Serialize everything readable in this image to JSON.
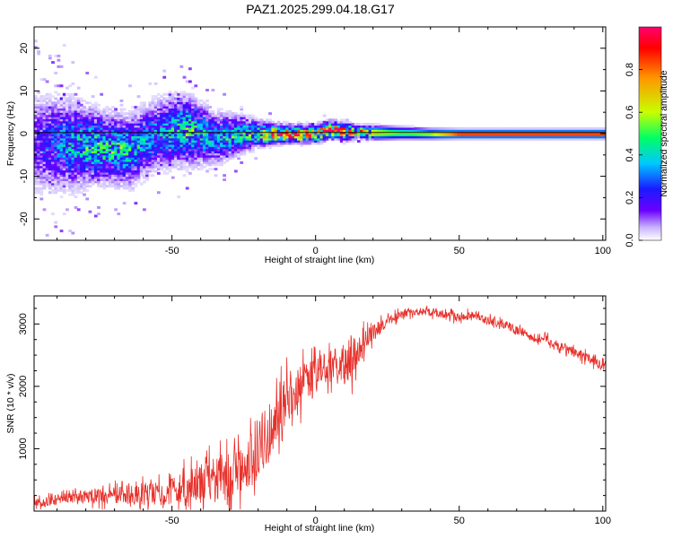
{
  "title": "PAZ1.2025.299.04.18.G17",
  "chart_data": [
    {
      "type": "heatmap",
      "title": "PAZ1.2025.299.04.18.G17",
      "xlabel": "Height of straight line (km)",
      "ylabel": "Frequency (Hz)",
      "xlim": [
        -98,
        101
      ],
      "ylim": [
        -25,
        25
      ],
      "xticks": [
        -50,
        0,
        50,
        100
      ],
      "yticks": [
        -20,
        -10,
        0,
        10,
        20
      ],
      "colorbar": {
        "label": "Normalized spectral amplitude",
        "range": [
          0,
          1
        ],
        "ticks": [
          "0.0",
          "0.2",
          "0.4",
          "0.6",
          "0.8"
        ],
        "tick_values": [
          0.0,
          0.2,
          0.4,
          0.6,
          0.8
        ],
        "colors": [
          "#ffffff",
          "#c8b4ff",
          "#6b00ff",
          "#1a1aff",
          "#00c8ff",
          "#00ff64",
          "#c8ff00",
          "#ff9600",
          "#ff0000",
          "#ff006e"
        ]
      },
      "ridge_profile": {
        "x": [
          -98,
          -85,
          -75,
          -65,
          -55,
          -45,
          -35,
          -25,
          -20,
          -15,
          -10,
          -5,
          0,
          5,
          10,
          15,
          20,
          30,
          40,
          50,
          60,
          70,
          80,
          90,
          101
        ],
        "center_freq": [
          -2,
          -2.5,
          -3,
          -4,
          0,
          1,
          -1,
          0,
          0,
          0,
          0,
          0,
          0,
          1,
          0.5,
          0.5,
          0.3,
          0.2,
          0,
          0,
          0,
          0,
          0,
          0,
          0
        ],
        "spread": [
          6,
          5,
          4,
          4,
          4,
          4,
          3,
          2,
          1.5,
          1.2,
          1,
          1,
          1,
          1,
          1,
          0.8,
          0.8,
          0.7,
          0.6,
          0.5,
          0.5,
          0.5,
          0.5,
          0.5,
          0.5
        ],
        "peak_amplitude": [
          0.15,
          0.35,
          0.45,
          0.4,
          0.3,
          0.45,
          0.35,
          0.45,
          0.5,
          0.8,
          0.9,
          0.9,
          0.9,
          0.95,
          0.9,
          0.6,
          0.7,
          0.55,
          0.6,
          0.95,
          0.95,
          0.95,
          0.95,
          0.95,
          0.95
        ]
      }
    },
    {
      "type": "line",
      "xlabel": "Height of straight line (km)",
      "ylabel": "SNR (10 * v/v)",
      "xlim": [
        -98,
        101
      ],
      "ylim": [
        0,
        3450
      ],
      "xticks": [
        -50,
        0,
        50,
        100
      ],
      "yticks": [
        1000,
        2000,
        3000
      ],
      "series": [
        {
          "name": "SNR",
          "color": "#e8302a",
          "x": [
            -98,
            -90,
            -80,
            -70,
            -60,
            -55,
            -50,
            -45,
            -40,
            -35,
            -30,
            -25,
            -22,
            -20,
            -18,
            -15,
            -10,
            -5,
            0,
            5,
            10,
            12,
            15,
            20,
            25,
            30,
            35,
            40,
            45,
            50,
            55,
            60,
            65,
            70,
            75,
            80,
            85,
            90,
            95,
            101
          ],
          "mean": [
            130,
            180,
            230,
            260,
            260,
            280,
            320,
            360,
            420,
            520,
            600,
            650,
            900,
            1000,
            1100,
            1350,
            1800,
            2000,
            2200,
            2300,
            2350,
            2450,
            2600,
            2850,
            3050,
            3150,
            3200,
            3200,
            3150,
            3100,
            3150,
            3050,
            3000,
            2900,
            2800,
            2750,
            2650,
            2550,
            2450,
            2300
          ],
          "spread": [
            120,
            150,
            200,
            250,
            300,
            350,
            400,
            500,
            600,
            700,
            700,
            700,
            900,
            1000,
            900,
            800,
            700,
            600,
            500,
            500,
            600,
            700,
            450,
            250,
            150,
            120,
            120,
            120,
            120,
            120,
            120,
            120,
            130,
            140,
            140,
            140,
            140,
            140,
            140,
            140
          ]
        }
      ]
    }
  ]
}
